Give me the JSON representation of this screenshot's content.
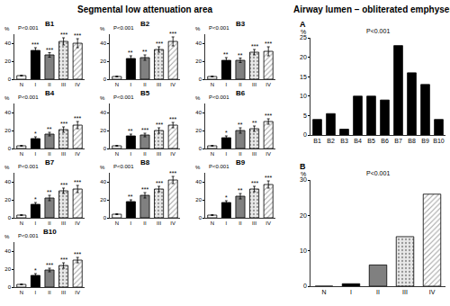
{
  "section_titles": [
    "Segmental low attenuation area",
    "Airway lumen – obliterated emphysema"
  ],
  "chart_data": [
    {
      "type": "bar",
      "title": "B1",
      "subtitle": "P<0.001",
      "y_label": "%",
      "categories": [
        "N",
        "I",
        "II",
        "III",
        "IV"
      ],
      "values": [
        4,
        32,
        27,
        42,
        40
      ],
      "errors": [
        0.5,
        3,
        2.5,
        4,
        5
      ],
      "significance": [
        null,
        "***",
        "***",
        "***",
        "***"
      ],
      "colors": [
        "#ffffff",
        "#000000",
        "#808080",
        "#e8e8e8",
        "#ffffff"
      ],
      "ylim": [
        0,
        50
      ],
      "yticks": [
        0,
        20,
        40
      ]
    },
    {
      "type": "bar",
      "title": "B2",
      "subtitle": "P<0.001",
      "y_label": "%",
      "categories": [
        "N",
        "I",
        "II",
        "III",
        "IV"
      ],
      "values": [
        3,
        23,
        24,
        33,
        42
      ],
      "errors": [
        0.5,
        3,
        3,
        3,
        5
      ],
      "significance": [
        null,
        "**",
        "**",
        "***",
        "***"
      ],
      "colors": [
        "#ffffff",
        "#000000",
        "#808080",
        "#e8e8e8",
        "#ffffff"
      ],
      "ylim": [
        0,
        50
      ],
      "yticks": [
        0,
        20,
        40
      ]
    },
    {
      "type": "bar",
      "title": "B3",
      "subtitle": "P<0.001",
      "y_label": "%",
      "categories": [
        "N",
        "I",
        "II",
        "III",
        "IV"
      ],
      "values": [
        3,
        21,
        21,
        30,
        31
      ],
      "errors": [
        0.5,
        3,
        2.5,
        3,
        5
      ],
      "significance": [
        null,
        "**",
        "**",
        "***",
        "***"
      ],
      "colors": [
        "#ffffff",
        "#000000",
        "#808080",
        "#e8e8e8",
        "#ffffff"
      ],
      "ylim": [
        0,
        50
      ],
      "yticks": [
        0,
        20,
        40
      ]
    },
    {
      "type": "bar",
      "title": "B4",
      "subtitle": "P<0.001",
      "y_label": "%",
      "categories": [
        "N",
        "I",
        "II",
        "III",
        "IV"
      ],
      "values": [
        3,
        11,
        16,
        21,
        26
      ],
      "errors": [
        0.5,
        2,
        2,
        3,
        4
      ],
      "significance": [
        null,
        "*",
        "**",
        "***",
        "***"
      ],
      "colors": [
        "#ffffff",
        "#000000",
        "#808080",
        "#e8e8e8",
        "#ffffff"
      ],
      "ylim": [
        0,
        50
      ],
      "yticks": [
        0,
        20,
        40
      ]
    },
    {
      "type": "bar",
      "title": "B5",
      "subtitle": "P<0.001",
      "y_label": "%",
      "categories": [
        "N",
        "I",
        "II",
        "III",
        "IV"
      ],
      "values": [
        3,
        14,
        15,
        20,
        26
      ],
      "errors": [
        0.5,
        2,
        2,
        3,
        3
      ],
      "significance": [
        null,
        "**",
        "***",
        "***",
        "***"
      ],
      "colors": [
        "#ffffff",
        "#000000",
        "#808080",
        "#e8e8e8",
        "#ffffff"
      ],
      "ylim": [
        0,
        50
      ],
      "yticks": [
        0,
        20,
        40
      ]
    },
    {
      "type": "bar",
      "title": "B6",
      "subtitle": "P<0.001",
      "y_label": "%",
      "categories": [
        "N",
        "I",
        "II",
        "III",
        "IV"
      ],
      "values": [
        3,
        12,
        20,
        22,
        30
      ],
      "errors": [
        0.5,
        2,
        3,
        3,
        3
      ],
      "significance": [
        null,
        "*",
        "**",
        "**",
        "***"
      ],
      "colors": [
        "#ffffff",
        "#000000",
        "#808080",
        "#e8e8e8",
        "#ffffff"
      ],
      "ylim": [
        0,
        50
      ],
      "yticks": [
        0,
        20,
        40
      ]
    },
    {
      "type": "bar",
      "title": "B7",
      "subtitle": "P<0.001",
      "y_label": "%",
      "categories": [
        "N",
        "I",
        "II",
        "III",
        "IV"
      ],
      "values": [
        3,
        15,
        22,
        30,
        32
      ],
      "errors": [
        0.5,
        2,
        3,
        3,
        4
      ],
      "significance": [
        null,
        "*",
        "**",
        "***",
        "***"
      ],
      "colors": [
        "#ffffff",
        "#000000",
        "#808080",
        "#e8e8e8",
        "#ffffff"
      ],
      "ylim": [
        0,
        50
      ],
      "yticks": [
        0,
        20,
        40
      ]
    },
    {
      "type": "bar",
      "title": "B8",
      "subtitle": "P<0.001",
      "y_label": "%",
      "categories": [
        "N",
        "I",
        "II",
        "III",
        "IV"
      ],
      "values": [
        4,
        18,
        25,
        32,
        42
      ],
      "errors": [
        0.5,
        2,
        3,
        3,
        4
      ],
      "significance": [
        null,
        "**",
        "***",
        "***",
        "***"
      ],
      "colors": [
        "#ffffff",
        "#000000",
        "#808080",
        "#e8e8e8",
        "#ffffff"
      ],
      "ylim": [
        0,
        50
      ],
      "yticks": [
        0,
        20,
        40
      ]
    },
    {
      "type": "bar",
      "title": "B9",
      "subtitle": "P<0.001",
      "y_label": "%",
      "categories": [
        "N",
        "I",
        "II",
        "III",
        "IV"
      ],
      "values": [
        3,
        17,
        24,
        32,
        37
      ],
      "errors": [
        0.5,
        2,
        3,
        3,
        4
      ],
      "significance": [
        null,
        "*",
        "**",
        "***",
        "***"
      ],
      "colors": [
        "#ffffff",
        "#000000",
        "#808080",
        "#e8e8e8",
        "#ffffff"
      ],
      "ylim": [
        0,
        50
      ],
      "yticks": [
        0,
        20,
        40
      ]
    },
    {
      "type": "bar",
      "title": "B10",
      "subtitle": "P<0.001",
      "y_label": "%",
      "categories": [
        "N",
        "I",
        "II",
        "III",
        "IV"
      ],
      "values": [
        3,
        13,
        19,
        24,
        30
      ],
      "errors": [
        0.5,
        2,
        2,
        3,
        3
      ],
      "significance": [
        null,
        "*",
        "***",
        "***",
        "***"
      ],
      "colors": [
        "#ffffff",
        "#000000",
        "#808080",
        "#e8e8e8",
        "#ffffff"
      ],
      "ylim": [
        0,
        50
      ],
      "yticks": [
        0,
        20,
        40
      ]
    },
    {
      "type": "bar",
      "title": "A",
      "subtitle": "P<0.001",
      "y_label": "%",
      "categories": [
        "B1",
        "B2",
        "B3",
        "B4",
        "B5",
        "B6",
        "B7",
        "B8",
        "B9",
        "B10"
      ],
      "values": [
        4,
        5.5,
        1.5,
        10,
        10,
        9,
        23,
        16,
        13,
        4
      ],
      "color": "#000000",
      "ylim": [
        0,
        25
      ],
      "yticks": [
        0,
        5,
        10,
        15,
        20,
        25
      ]
    },
    {
      "type": "bar",
      "title": "B",
      "subtitle": "P<0.001",
      "y_label": "%",
      "categories": [
        "N",
        "I",
        "II",
        "III",
        "IV"
      ],
      "values": [
        0,
        0.7,
        6,
        14,
        26
      ],
      "colors": [
        "#ffffff",
        "#000000",
        "#808080",
        "#e8e8e8",
        "#ffffff"
      ],
      "ylim": [
        0,
        30
      ],
      "yticks": [
        0,
        10,
        20,
        30
      ]
    }
  ]
}
